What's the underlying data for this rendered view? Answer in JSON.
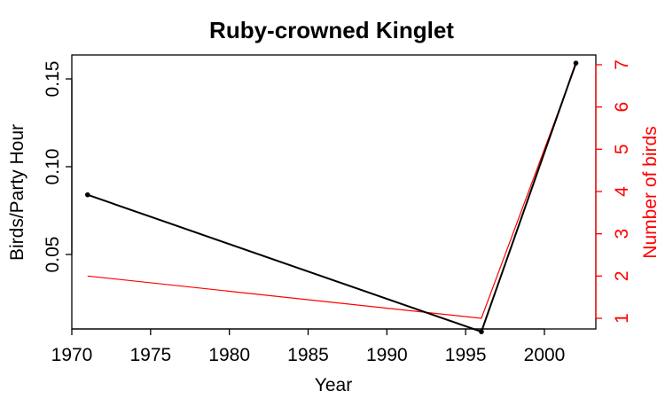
{
  "chart_data": {
    "type": "line",
    "title": "Ruby-crowned Kinglet",
    "xlabel": "Year",
    "ylabel_left": "Birds/Party Hour",
    "ylabel_right": "Number of birds",
    "xlim": [
      1970,
      2002
    ],
    "x_ticks": [
      1970,
      1975,
      1980,
      1985,
      1990,
      1995,
      2000
    ],
    "ylim_left": [
      0.0,
      0.16
    ],
    "y_ticks_left": [
      "0.05",
      "0.10",
      "0.15"
    ],
    "ylim_right": [
      1,
      7
    ],
    "y_ticks_right": [
      "1",
      "2",
      "3",
      "4",
      "5",
      "6",
      "7"
    ],
    "series": [
      {
        "name": "Birds/Party Hour",
        "axis": "left",
        "color": "#000000",
        "markers": true,
        "points": [
          {
            "x": 1971,
            "y": 0.084
          },
          {
            "x": 1996,
            "y": 0.006
          },
          {
            "x": 2002,
            "y": 0.159
          }
        ]
      },
      {
        "name": "Number of birds",
        "axis": "right",
        "color": "#ff0000",
        "markers": false,
        "points": [
          {
            "x": 1971,
            "y": 2
          },
          {
            "x": 1996,
            "y": 1
          },
          {
            "x": 2002,
            "y": 7
          }
        ]
      }
    ],
    "grid": false
  }
}
